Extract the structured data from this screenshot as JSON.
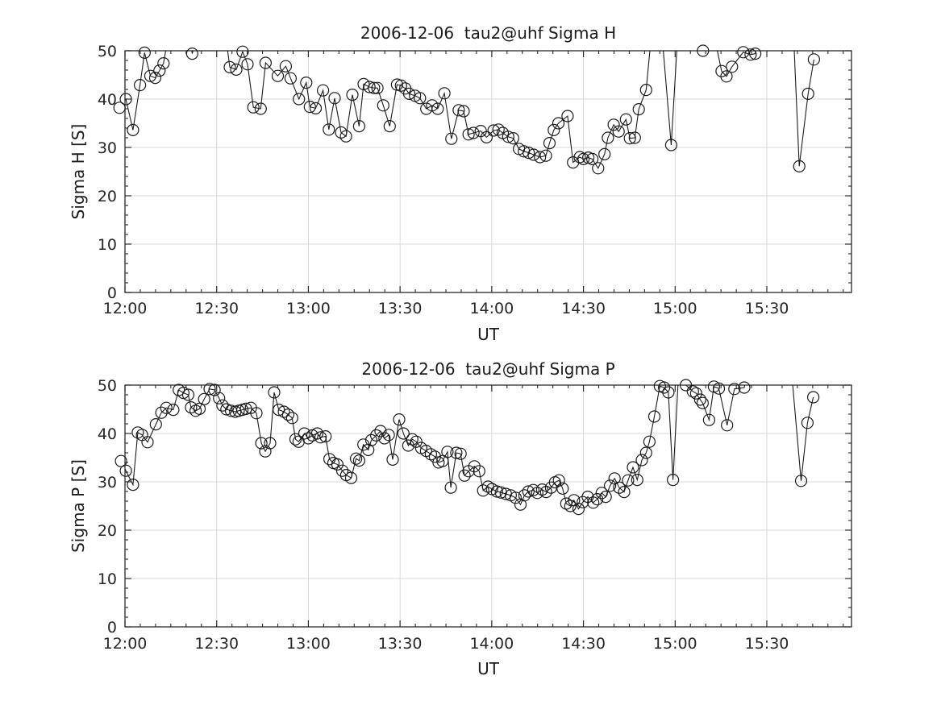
{
  "style": {
    "background": "#ffffff",
    "line_color": "#1c1c1c",
    "marker_color": "#1c1c1c",
    "grid_color": "#d9d9d9",
    "axis_color": "#2a2a2a",
    "text_color": "#262626",
    "marker_radius": 7,
    "offscale_value": 57
  },
  "chart_data": [
    {
      "type": "line",
      "title": "2006-12-06  tau2@uhf Sigma H",
      "xlabel": "UT",
      "ylabel": "Sigma H [S]",
      "xlim_minutes": [
        0,
        237.7
      ],
      "ylim": [
        0,
        50
      ],
      "x_axis_start": "12:00",
      "xticks": [
        {
          "minute": 0,
          "label": "12:00"
        },
        {
          "minute": 30,
          "label": "12:30"
        },
        {
          "minute": 60,
          "label": "13:00"
        },
        {
          "minute": 90,
          "label": "13:30"
        },
        {
          "minute": 120,
          "label": "14:00"
        },
        {
          "minute": 150,
          "label": "14:30"
        },
        {
          "minute": 180,
          "label": "15:00"
        },
        {
          "minute": 210,
          "label": "15:30"
        }
      ],
      "yticks": [
        0,
        10,
        20,
        30,
        40,
        50
      ],
      "x_minor_step_minutes": 5,
      "y_minor_step": 2,
      "grid": true,
      "legend": null,
      "note_offscale": "values of 57 represent points above the 50 axis limit (line clipped at top)",
      "series": [
        {
          "name": "Sigma H",
          "marker": "open-circle",
          "x_minutes": [
            -1.8,
            0.3,
            2.6,
            4.9,
            6.4,
            8.3,
            9.9,
            11.3,
            12.6,
            15.2,
            17.6,
            20.0,
            22.0,
            25.0,
            27.4,
            29.8,
            32.1,
            34.3,
            36.4,
            38.5,
            40.1,
            42.0,
            44.4,
            46.0,
            50.0,
            52.6,
            54.2,
            56.9,
            59.3,
            60.5,
            62.4,
            64.8,
            66.7,
            68.6,
            70.7,
            72.3,
            74.4,
            76.6,
            78.1,
            80.0,
            81.5,
            82.6,
            84.5,
            86.6,
            89.0,
            90.3,
            91.7,
            93.0,
            94.9,
            96.5,
            98.6,
            100.5,
            102.3,
            104.5,
            106.8,
            109.2,
            110.8,
            112.4,
            114.0,
            116.4,
            118.3,
            120.6,
            122.2,
            123.6,
            125.4,
            127.0,
            128.9,
            130.5,
            132.1,
            133.7,
            135.8,
            137.7,
            138.9,
            140.3,
            141.8,
            144.8,
            146.6,
            148.8,
            150.0,
            151.6,
            152.9,
            154.8,
            156.9,
            158.0,
            159.9,
            161.5,
            163.9,
            165.2,
            166.8,
            168.1,
            170.5,
            172.8,
            175.2,
            178.7,
            181.2,
            183.6,
            186.2,
            189.1,
            191.5,
            195.2,
            196.8,
            198.6,
            202.3,
            204.7,
            206.2,
            208.5,
            211.0,
            213.5,
            216.0,
            218.5,
            220.6,
            223.5,
            225.4
          ],
          "values": [
            38.2,
            40.0,
            33.6,
            42.9,
            49.6,
            44.8,
            44.4,
            45.9,
            47.4,
            57,
            57,
            57,
            49.4,
            57,
            57,
            57,
            57,
            46.6,
            46.1,
            49.8,
            47.2,
            38.3,
            38.0,
            47.5,
            44.8,
            46.8,
            44.3,
            40.0,
            43.4,
            38.4,
            38.1,
            41.8,
            33.7,
            40.2,
            33.1,
            32.3,
            40.9,
            34.4,
            43.1,
            42.5,
            42.3,
            42.3,
            38.7,
            34.4,
            43.0,
            42.8,
            42.2,
            41.1,
            40.7,
            40.2,
            38.0,
            38.7,
            38.0,
            41.2,
            31.8,
            37.7,
            37.5,
            32.7,
            33.0,
            33.4,
            32.1,
            33.5,
            33.7,
            33.0,
            32.2,
            31.9,
            29.7,
            29.2,
            28.9,
            28.5,
            28.0,
            28.3,
            30.9,
            33.6,
            35.0,
            36.5,
            26.9,
            28.0,
            27.6,
            27.9,
            27.6,
            25.7,
            28.6,
            32.0,
            34.7,
            33.3,
            35.8,
            31.9,
            32.0,
            37.9,
            41.9,
            57,
            57,
            30.5,
            57,
            57,
            57,
            50.0,
            57,
            45.8,
            44.7,
            46.7,
            49.7,
            49.2,
            49.4,
            57,
            57,
            57,
            57,
            57,
            26.1,
            41.1,
            48.2
          ]
        }
      ]
    },
    {
      "type": "line",
      "title": "2006-12-06  tau2@uhf Sigma P",
      "xlabel": "UT",
      "ylabel": "Sigma P [S]",
      "xlim_minutes": [
        0,
        237.7
      ],
      "ylim": [
        0,
        50
      ],
      "x_axis_start": "12:00",
      "xticks": [
        {
          "minute": 0,
          "label": "12:00"
        },
        {
          "minute": 30,
          "label": "12:30"
        },
        {
          "minute": 60,
          "label": "13:00"
        },
        {
          "minute": 90,
          "label": "13:30"
        },
        {
          "minute": 120,
          "label": "14:00"
        },
        {
          "minute": 150,
          "label": "14:30"
        },
        {
          "minute": 180,
          "label": "15:00"
        },
        {
          "minute": 210,
          "label": "15:30"
        }
      ],
      "yticks": [
        0,
        10,
        20,
        30,
        40,
        50
      ],
      "x_minor_step_minutes": 5,
      "y_minor_step": 2,
      "grid": true,
      "legend": null,
      "note_offscale": "values of 57 represent points above the 50 axis limit (line clipped at top)",
      "series": [
        {
          "name": "Sigma P",
          "marker": "open-circle",
          "x_minutes": [
            -1.3,
            0.3,
            2.6,
            4.2,
            5.6,
            7.4,
            10.1,
            11.9,
            13.5,
            15.8,
            17.6,
            19.1,
            20.7,
            21.6,
            23.1,
            24.4,
            25.9,
            27.7,
            29.3,
            30.8,
            31.9,
            33.2,
            34.7,
            36.1,
            37.2,
            38.4,
            39.6,
            41.2,
            43.0,
            44.6,
            45.9,
            47.5,
            48.8,
            50.3,
            52.0,
            53.4,
            54.7,
            55.8,
            56.8,
            58.7,
            60.0,
            61.3,
            62.9,
            64.0,
            65.6,
            66.9,
            68.2,
            69.5,
            71.1,
            72.4,
            74.0,
            75.6,
            76.6,
            78.0,
            79.6,
            80.6,
            82.2,
            83.6,
            84.9,
            86.3,
            87.6,
            89.7,
            91.1,
            92.7,
            94.0,
            95.3,
            96.9,
            98.5,
            100.1,
            101.4,
            102.6,
            103.9,
            105.5,
            106.6,
            108.4,
            109.8,
            111.1,
            112.4,
            114.3,
            115.9,
            117.2,
            118.8,
            120.1,
            121.7,
            123.0,
            124.6,
            126.2,
            127.8,
            129.4,
            130.7,
            132.0,
            133.6,
            134.9,
            136.5,
            137.8,
            139.4,
            140.7,
            142.0,
            143.2,
            144.4,
            145.7,
            146.9,
            148.4,
            149.8,
            151.4,
            153.2,
            154.5,
            156.0,
            157.3,
            158.7,
            160.2,
            161.7,
            163.3,
            164.6,
            166.2,
            167.6,
            169.1,
            170.5,
            171.6,
            173.2,
            175.0,
            176.4,
            177.8,
            179.3,
            181.5,
            183.5,
            185.8,
            186.9,
            188.2,
            189.0,
            191.1,
            192.7,
            194.3,
            197.0,
            199.4,
            202.6,
            205.0,
            207.5,
            210.0,
            212.5,
            215.0,
            217.5,
            221.2,
            223.3,
            225.2
          ],
          "values": [
            34.3,
            32.3,
            29.4,
            40.2,
            39.7,
            38.2,
            41.9,
            44.3,
            45.3,
            44.9,
            49.0,
            48.4,
            48.0,
            45.4,
            44.7,
            45.1,
            47.1,
            49.2,
            49.0,
            47.3,
            45.8,
            45.0,
            44.7,
            44.5,
            44.7,
            44.9,
            45.1,
            45.3,
            44.2,
            38.0,
            36.3,
            38.0,
            48.5,
            44.9,
            44.5,
            43.9,
            43.2,
            38.8,
            38.3,
            40.0,
            39.0,
            39.6,
            40.0,
            39.2,
            39.4,
            34.7,
            33.9,
            33.6,
            32.3,
            31.4,
            30.8,
            34.8,
            34.4,
            37.7,
            36.6,
            38.6,
            39.6,
            40.5,
            39.0,
            39.7,
            34.6,
            42.9,
            40.0,
            37.5,
            38.8,
            38.3,
            37.0,
            36.4,
            35.7,
            35.2,
            34.0,
            34.3,
            36.2,
            28.8,
            36.0,
            35.8,
            31.3,
            32.2,
            33.2,
            32.2,
            28.2,
            29.0,
            28.5,
            28.0,
            27.8,
            27.5,
            27.2,
            26.7,
            25.3,
            27.2,
            28.0,
            28.3,
            27.7,
            28.4,
            27.9,
            28.8,
            29.9,
            30.3,
            28.6,
            25.5,
            25.0,
            26.2,
            24.4,
            25.8,
            26.9,
            25.7,
            26.4,
            27.7,
            26.9,
            29.2,
            30.7,
            28.8,
            27.9,
            30.3,
            33.0,
            30.4,
            34.5,
            36.0,
            38.3,
            43.5,
            49.8,
            49.5,
            48.5,
            30.4,
            57,
            50.0,
            48.7,
            48.3,
            47.0,
            46.3,
            42.8,
            49.7,
            49.3,
            41.7,
            49.2,
            49.5,
            57,
            57,
            57,
            57,
            57,
            57,
            30.2,
            42.2,
            47.5
          ]
        }
      ]
    }
  ]
}
